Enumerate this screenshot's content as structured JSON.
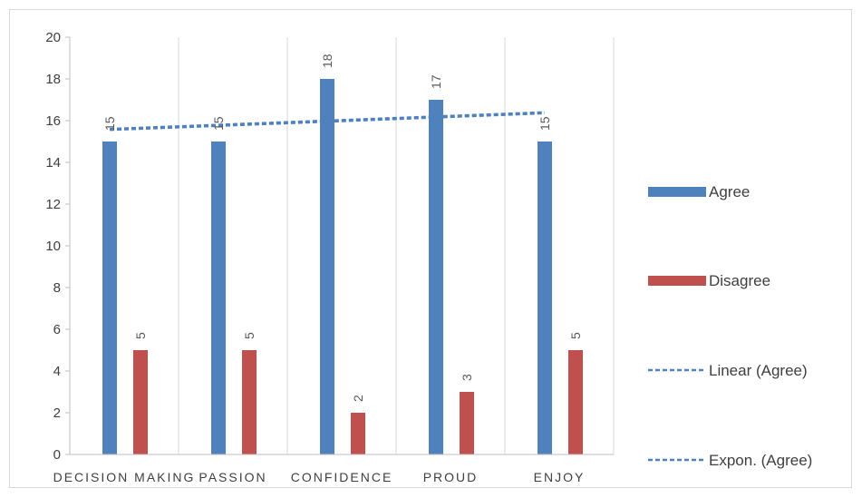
{
  "chart_data": {
    "type": "bar",
    "categories": [
      "DECISION MAKING",
      "PASSION",
      "CONFIDENCE",
      "PROUD",
      "ENJOY"
    ],
    "series": [
      {
        "name": "Agree",
        "values": [
          15,
          15,
          18,
          17,
          15
        ],
        "color": "#4f81bd"
      },
      {
        "name": "Disagree",
        "values": [
          5,
          5,
          2,
          3,
          5
        ],
        "color": "#c0504d"
      }
    ],
    "trendlines": [
      {
        "name": "Linear (Agree)",
        "of": "Agree",
        "kind": "linear",
        "color": "#4f81bd"
      },
      {
        "name": "Expon. (Agree)",
        "of": "Agree",
        "kind": "exponential",
        "color": "#4f81bd"
      }
    ],
    "ylim": [
      0,
      20
    ],
    "yticks": [
      0,
      2,
      4,
      6,
      8,
      10,
      12,
      14,
      16,
      18,
      20
    ],
    "title": "",
    "xlabel": "",
    "ylabel": "",
    "grid": "vertical",
    "legend_position": "right"
  }
}
